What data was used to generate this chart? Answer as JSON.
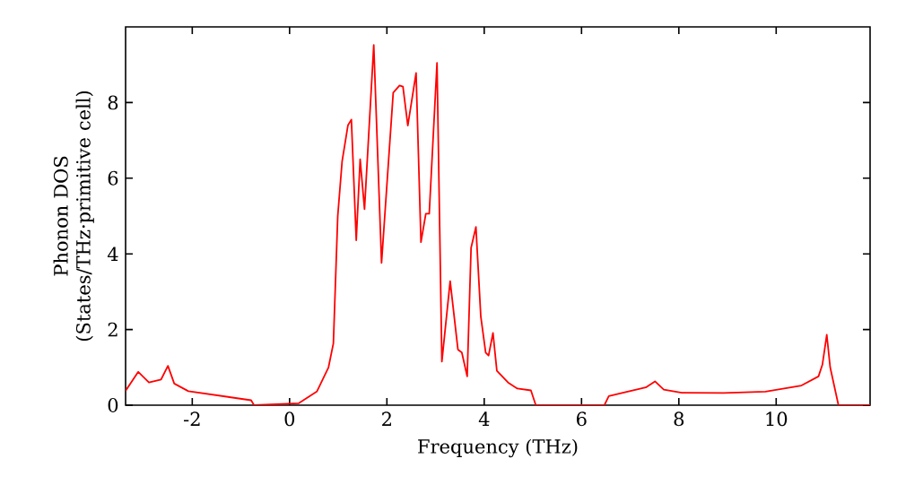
{
  "chart_data": {
    "type": "line",
    "xlabel": "Frequency (THz)",
    "ylabel": "Phonon DOS (States/THz·primitive cell)",
    "xlim": [
      -3.37,
      11.93
    ],
    "ylim": [
      0,
      10
    ],
    "xticks": [
      -2,
      0,
      2,
      4,
      6,
      8,
      10
    ],
    "yticks": [
      0,
      2,
      4,
      6,
      8
    ],
    "series": [
      {
        "color": "#ff0000",
        "x": [
          -3.37,
          -3.11,
          -2.89,
          -2.64,
          -2.5,
          -2.37,
          -2.08,
          -0.79,
          -0.73,
          0.19,
          0.56,
          0.8,
          0.9,
          0.99,
          1.08,
          1.2,
          1.27,
          1.37,
          1.45,
          1.54,
          1.73,
          1.89,
          2.13,
          2.26,
          2.33,
          2.43,
          2.6,
          2.7,
          2.8,
          2.87,
          3.03,
          3.13,
          3.3,
          3.46,
          3.54,
          3.65,
          3.73,
          3.83,
          3.93,
          4.03,
          4.09,
          4.18,
          4.26,
          4.49,
          4.68,
          4.96,
          5.06,
          6.47,
          6.56,
          6.83,
          7.32,
          7.51,
          7.69,
          8.06,
          8.92,
          9.78,
          10.52,
          10.87,
          10.95,
          11.04,
          11.11,
          11.28,
          11.93
        ],
        "values": [
          0.38,
          0.88,
          0.6,
          0.68,
          1.04,
          0.57,
          0.37,
          0.13,
          0,
          0.05,
          0.36,
          1.0,
          1.63,
          5.0,
          6.45,
          7.4,
          7.55,
          4.36,
          6.5,
          5.18,
          9.52,
          3.76,
          8.26,
          8.45,
          8.42,
          7.39,
          8.78,
          4.31,
          5.06,
          5.06,
          9.05,
          1.15,
          3.28,
          1.47,
          1.39,
          0.76,
          4.16,
          4.71,
          2.34,
          1.39,
          1.31,
          1.91,
          0.91,
          0.6,
          0.44,
          0.39,
          0,
          0,
          0.24,
          0.32,
          0.47,
          0.63,
          0.41,
          0.33,
          0.32,
          0.36,
          0.52,
          0.76,
          1.07,
          1.86,
          1.0,
          0,
          0
        ]
      }
    ]
  }
}
